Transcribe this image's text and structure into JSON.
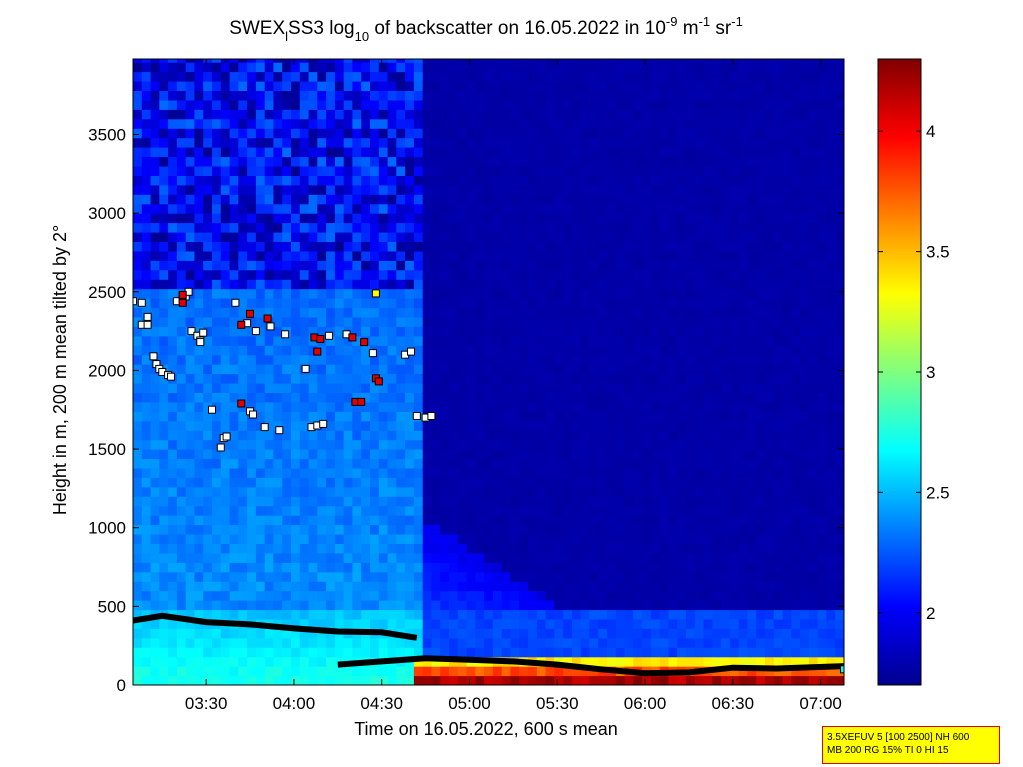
{
  "chart_data": {
    "type": "heatmap",
    "title": {
      "part1": "SWEX",
      "sub1": "l",
      "part2": "SS3 log",
      "sub2": "10",
      "part3": " of backscatter on 16.05.2022 in 10",
      "sup1": "-9",
      "part4": " m",
      "sup2": "-1",
      "part5": " sr",
      "sup3": "-1"
    },
    "xlabel": "Time on 16.05.2022, 600 s mean",
    "ylabel": "Height in m, 200 m mean tilted by 2°",
    "x_range": [
      "03:05",
      "07:08"
    ],
    "y_range": [
      0,
      3980
    ],
    "x_ticks": [
      "03:30",
      "04:00",
      "04:30",
      "05:00",
      "05:30",
      "06:00",
      "06:30",
      "07:00"
    ],
    "y_ticks": [
      0,
      500,
      1000,
      1500,
      2000,
      2500,
      3000,
      3500
    ],
    "colorbar": {
      "range": [
        1.7,
        4.3
      ],
      "ticks": [
        2,
        2.5,
        3,
        3.5,
        4
      ],
      "tick_labels": [
        "2",
        "2.5",
        "3",
        "3.5",
        "4"
      ],
      "colormap": "jet"
    },
    "grid": false,
    "field_profile": {
      "description_free": true,
      "mid_level_log10_until_clearing": 2.4,
      "upper_level_log10_patchy": [
        1.7,
        2.3
      ],
      "clear_sky_log10": 1.75,
      "clearing_time": "04:45",
      "near_surface_log10": 2.75,
      "surface_layer_max_log10": 4.3
    },
    "series": [
      {
        "marker": "black-line",
        "points": [
          [
            "03:05",
            410
          ],
          [
            "03:15",
            440
          ],
          [
            "03:30",
            400
          ],
          [
            "03:45",
            385
          ],
          [
            "04:00",
            360
          ],
          [
            "04:15",
            340
          ],
          [
            "04:30",
            335
          ],
          [
            "04:42",
            300
          ]
        ]
      },
      {
        "marker": "black-line",
        "points": [
          [
            "04:15",
            130
          ],
          [
            "04:30",
            150
          ],
          [
            "04:45",
            170
          ],
          [
            "05:00",
            160
          ],
          [
            "05:15",
            150
          ],
          [
            "05:30",
            130
          ],
          [
            "05:45",
            100
          ],
          [
            "06:00",
            75
          ],
          [
            "06:15",
            80
          ],
          [
            "06:30",
            110
          ],
          [
            "06:45",
            105
          ],
          [
            "07:08",
            120
          ]
        ]
      },
      {
        "marker": "white-square",
        "points": [
          [
            "03:05",
            2440
          ],
          [
            "03:08",
            2430
          ],
          [
            "03:08",
            2290
          ],
          [
            "03:10",
            2340
          ],
          [
            "03:10",
            2290
          ],
          [
            "03:12",
            2090
          ],
          [
            "03:13",
            2040
          ],
          [
            "03:14",
            2010
          ],
          [
            "03:15",
            1990
          ],
          [
            "03:17",
            1970
          ],
          [
            "03:18",
            1960
          ],
          [
            "03:20",
            2440
          ],
          [
            "03:22",
            2450
          ],
          [
            "03:23",
            2470
          ],
          [
            "03:24",
            2500
          ],
          [
            "03:25",
            2250
          ],
          [
            "03:27",
            2220
          ],
          [
            "03:28",
            2190
          ],
          [
            "03:28",
            2180
          ],
          [
            "03:29",
            2240
          ],
          [
            "03:32",
            1750
          ],
          [
            "03:35",
            1510
          ],
          [
            "03:36",
            1570
          ],
          [
            "03:37",
            1580
          ],
          [
            "03:40",
            2430
          ],
          [
            "03:44",
            2300
          ],
          [
            "03:45",
            1740
          ],
          [
            "03:46",
            1720
          ],
          [
            "03:47",
            2250
          ],
          [
            "03:50",
            1640
          ],
          [
            "03:52",
            2280
          ],
          [
            "03:55",
            1620
          ],
          [
            "03:57",
            2230
          ],
          [
            "04:04",
            2010
          ],
          [
            "04:06",
            1640
          ],
          [
            "04:08",
            1650
          ],
          [
            "04:10",
            1660
          ],
          [
            "04:12",
            2220
          ],
          [
            "04:18",
            2230
          ],
          [
            "04:27",
            2110
          ],
          [
            "04:38",
            2100
          ],
          [
            "04:40",
            2120
          ],
          [
            "04:42",
            1710
          ],
          [
            "04:45",
            1700
          ],
          [
            "04:47",
            1710
          ]
        ]
      },
      {
        "marker": "red-square",
        "points": [
          [
            "03:22",
            2430
          ],
          [
            "03:22",
            2480
          ],
          [
            "03:42",
            2290
          ],
          [
            "03:42",
            1790
          ],
          [
            "03:45",
            2360
          ],
          [
            "03:51",
            2330
          ],
          [
            "04:07",
            2210
          ],
          [
            "04:08",
            2120
          ],
          [
            "04:09",
            2200
          ],
          [
            "04:20",
            2210
          ],
          [
            "04:21",
            1800
          ],
          [
            "04:23",
            1800
          ],
          [
            "04:24",
            2180
          ],
          [
            "04:28",
            1950
          ],
          [
            "04:29",
            1930
          ]
        ]
      },
      {
        "marker": "yellow-square",
        "points": [
          [
            "04:28",
            2490
          ]
        ]
      },
      {
        "marker": "cyan-square",
        "points": [
          [
            "07:08",
            100
          ]
        ]
      }
    ]
  },
  "info_box": {
    "line1": "3.5XEFUV 5 [100 2500] NH 600",
    "line2": "MB 200 RG 15% TI 0 HI 15"
  }
}
